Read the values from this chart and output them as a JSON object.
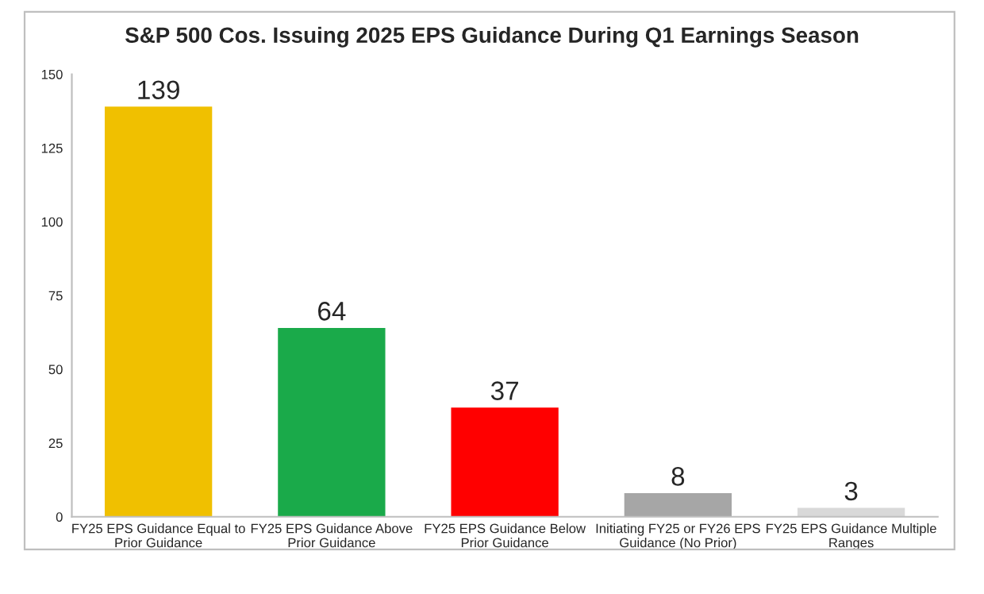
{
  "chart_data": {
    "type": "bar",
    "title": "S&P 500 Cos. Issuing 2025 EPS Guidance During Q1 Earnings Season",
    "categories": [
      "FY25 EPS Guidance Equal to\nPrior Guidance",
      "FY25 EPS Guidance Above\nPrior Guidance",
      "FY25 EPS Guidance Below\nPrior Guidance",
      "Initiating FY25 or FY26 EPS\nGuidance (No Prior)",
      "FY25 EPS Guidance Multiple\nRanges"
    ],
    "values": [
      139,
      64,
      37,
      8,
      3
    ],
    "colors": [
      "#f0c000",
      "#1aaa4a",
      "#ff0000",
      "#a6a6a6",
      "#d9d9d9"
    ],
    "ylim": [
      0,
      150
    ],
    "yticks": [
      0,
      25,
      50,
      75,
      100,
      125,
      150
    ],
    "data_labels": true,
    "grid": false,
    "legend": false
  }
}
